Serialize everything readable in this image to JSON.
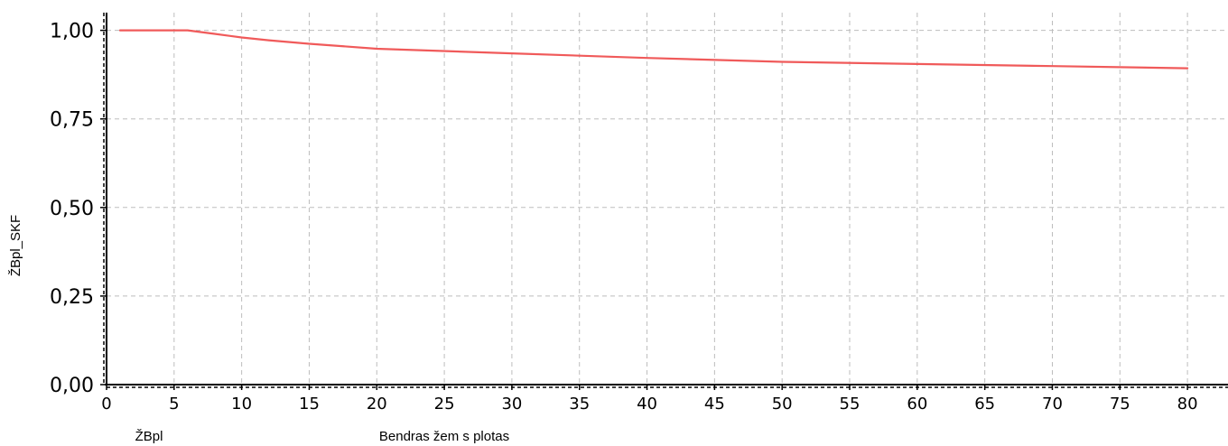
{
  "chart_data": {
    "type": "line",
    "xlabel": "Bendras žem  s plotas",
    "ylabel": "ŽBpl_SKF",
    "x_corner_label": "ŽBpl",
    "xlim": [
      0,
      83
    ],
    "ylim": [
      0,
      1.05
    ],
    "x_ticks": [
      0,
      5,
      10,
      15,
      20,
      25,
      30,
      35,
      40,
      45,
      50,
      55,
      60,
      65,
      70,
      75,
      80
    ],
    "y_ticks": [
      0,
      0.25,
      0.5,
      0.75,
      1.0
    ],
    "y_tick_labels": [
      "0,00",
      "0,25",
      "0,50",
      "0,75",
      "1,00"
    ],
    "grid": true,
    "series": [
      {
        "color": "#f05a5a",
        "x": [
          1,
          6,
          8,
          10,
          12,
          15,
          20,
          30,
          40,
          50,
          60,
          70,
          80
        ],
        "y": [
          1.0,
          1.0,
          0.99,
          0.98,
          0.972,
          0.962,
          0.948,
          0.935,
          0.922,
          0.911,
          0.905,
          0.899,
          0.893
        ]
      }
    ]
  }
}
